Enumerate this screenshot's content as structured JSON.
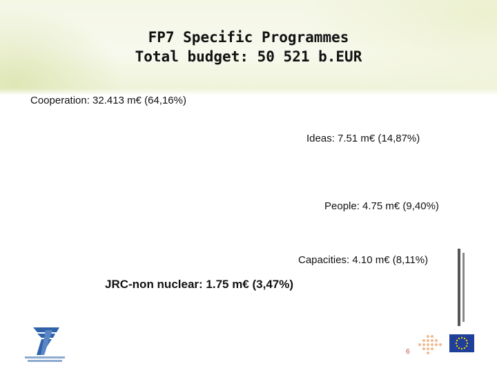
{
  "slide": {
    "title_line1": "FP7 Specific Programmes",
    "title_line2": "Total budget: 50 521 b.EUR",
    "labels": {
      "cooperation": "Cooperation: 32.413  m€ (64,16%)",
      "ideas": "Ideas: 7.51 m€ (14,87%)",
      "people": "People: 4.75 m€ (9,40%)",
      "capacities": "Capacities: 4.10 m€ (8,11%)",
      "jrc": "JRC-non nuclear: 1.75 m€ (3,47%)"
    },
    "page_number": "6"
  },
  "logos": {
    "fp7_logo": "fp7-logo",
    "ec_logo": "european-commission-logo",
    "eu_flag": "eu-flag-icon",
    "decorative_dots": "dots-icon"
  },
  "colors": {
    "header_band": "#f4f6e6",
    "fp7_blue": "#2f62a8",
    "eu_blue": "#1f3f9a",
    "eu_star": "#f5d000",
    "dots": "#f2b98e",
    "page_number": "#c24a4a"
  }
}
